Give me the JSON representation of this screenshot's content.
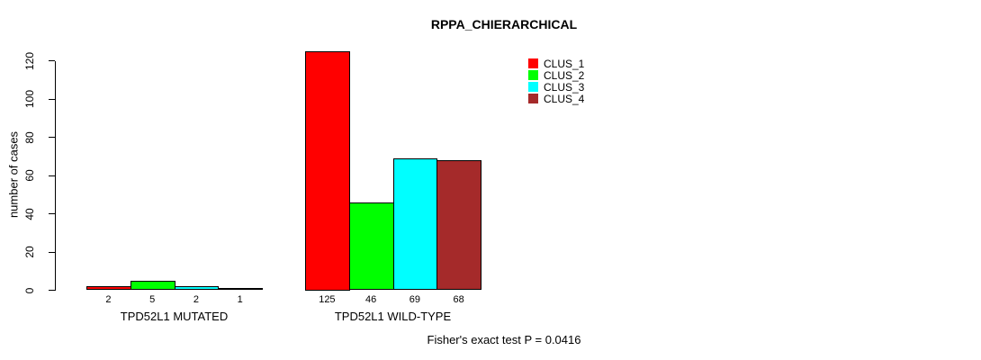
{
  "chart_data": {
    "type": "bar",
    "title": "RPPA_CHIERARCHICAL",
    "ylabel": "number of cases",
    "xlabel": "",
    "ylim": [
      0,
      120
    ],
    "yticks": [
      0,
      20,
      40,
      60,
      80,
      100,
      120
    ],
    "grid": false,
    "legend_position": "top-right",
    "bar_value_labels": true,
    "categories": [
      "TPD52L1 MUTATED",
      "TPD52L1 WILD-TYPE"
    ],
    "series": [
      {
        "name": "CLUS_1",
        "color": "#ff0000",
        "values": [
          2,
          125
        ]
      },
      {
        "name": "CLUS_2",
        "color": "#00ff00",
        "values": [
          5,
          46
        ]
      },
      {
        "name": "CLUS_3",
        "color": "#00ffff",
        "values": [
          2,
          69
        ]
      },
      {
        "name": "CLUS_4",
        "color": "#a52a2a",
        "values": [
          1,
          68
        ]
      }
    ],
    "groups": [
      {
        "label": "TPD52L1 MUTATED",
        "values": [
          2,
          5,
          2,
          1
        ]
      },
      {
        "label": "TPD52L1 WILD-TYPE",
        "values": [
          125,
          46,
          69,
          68
        ]
      }
    ],
    "footnote": "Fisher's exact test P = 0.0416"
  }
}
